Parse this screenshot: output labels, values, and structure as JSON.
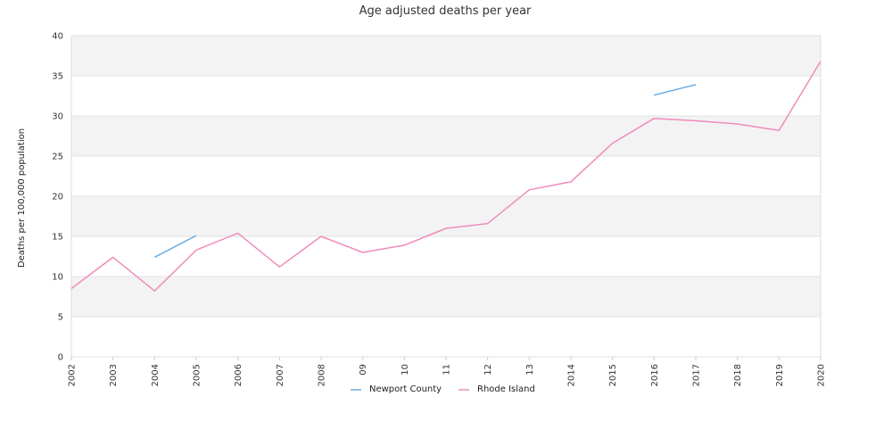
{
  "chart_data": {
    "type": "line",
    "title": "Age adjusted deaths per year",
    "xlabel": "",
    "ylabel": "Deaths per 100,000 population",
    "ylim": [
      0,
      40
    ],
    "yticks": [
      "0",
      "5",
      "10",
      "15",
      "20",
      "25",
      "30",
      "35",
      "40"
    ],
    "categories": [
      "2002",
      "2003",
      "2004",
      "2005",
      "2006",
      "2007",
      "2008",
      "09",
      "10",
      "11",
      "12",
      "13",
      "2014",
      "2015",
      "2016",
      "2017",
      "2018",
      "2019",
      "2020"
    ],
    "grid": true,
    "legend_position": "bottom",
    "series": [
      {
        "name": "Newport County",
        "color": "#6aaee6",
        "values": [
          null,
          null,
          12.4,
          15.1,
          null,
          null,
          null,
          null,
          null,
          null,
          null,
          null,
          null,
          null,
          32.6,
          33.9,
          null,
          null,
          null
        ]
      },
      {
        "name": "Rhode Island",
        "color": "#f08cbc",
        "values": [
          8.5,
          12.4,
          8.2,
          13.3,
          15.4,
          11.2,
          15.0,
          13.0,
          13.9,
          16.0,
          16.6,
          20.8,
          21.8,
          26.6,
          29.7,
          29.4,
          29.0,
          28.2,
          36.8
        ]
      }
    ]
  }
}
